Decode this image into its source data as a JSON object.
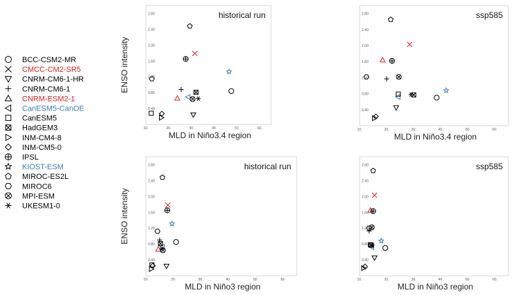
{
  "legend": {
    "items": [
      {
        "label": "BCC-CSM2-MR",
        "marker": "circle",
        "color": "#000000"
      },
      {
        "label": "CMCC-CM2-SR5",
        "marker": "cross-x",
        "color": "#e02020"
      },
      {
        "label": "CNRM-CM6-1-HR",
        "marker": "triangle-down",
        "color": "#000000"
      },
      {
        "label": "CNRM-CM6-1",
        "marker": "plus",
        "color": "#000000"
      },
      {
        "label": "CNRM-ESM2-1",
        "marker": "triangle-up",
        "color": "#e02020"
      },
      {
        "label": "CanESM5-CanOE",
        "marker": "triangle-left",
        "color": "#3e7cb8"
      },
      {
        "label": "CanESM5",
        "marker": "square",
        "color": "#000000"
      },
      {
        "label": "HadGEM3",
        "marker": "square-x",
        "color": "#000000"
      },
      {
        "label": "INM-CM4-8",
        "marker": "triangle-right",
        "color": "#000000"
      },
      {
        "label": "INM-CM5-0",
        "marker": "diamond",
        "color": "#000000"
      },
      {
        "label": "IPSL",
        "marker": "circle-plus",
        "color": "#000000"
      },
      {
        "label": "KIOST-ESM",
        "marker": "star",
        "color": "#3e7cb8"
      },
      {
        "label": "MIROC-ES2L",
        "marker": "pentagon",
        "color": "#000000"
      },
      {
        "label": "MIROC6",
        "marker": "hexagon",
        "color": "#000000"
      },
      {
        "label": "MPI-ESM",
        "marker": "circle-x",
        "color": "#000000"
      },
      {
        "label": "UKESM1-0",
        "marker": "asterisk",
        "color": "#000000"
      }
    ]
  },
  "chart_data": [
    {
      "type": "scatter",
      "title": "historical run",
      "xlabel": "MLD in Niño3.4 region",
      "ylabel": "ENSO intensity",
      "xlim": [
        10,
        65
      ],
      "ylim": [
        0,
        3.0
      ],
      "xticks": [
        "10.",
        "20.",
        "30.",
        "40.",
        "50.",
        "60."
      ],
      "yticks": [
        "",
        "0.40",
        "0.80",
        "1.20",
        "1.60",
        "2.00",
        "2.40",
        "2.80"
      ],
      "points": [
        {
          "model": "BCC-CSM2-MR",
          "x": 47.5,
          "y": 0.84
        },
        {
          "model": "CMCC-CM2-SR5",
          "x": 31.5,
          "y": 1.79
        },
        {
          "model": "CNRM-CM6-1-HR",
          "x": 30.8,
          "y": 0.24
        },
        {
          "model": "CNRM-CM6-1",
          "x": 25.5,
          "y": 0.88
        },
        {
          "model": "CNRM-ESM2-1",
          "x": 23.8,
          "y": 0.66
        },
        {
          "model": "CanESM5-CanOE",
          "x": 28.5,
          "y": 0.69
        },
        {
          "model": "CanESM5",
          "x": 12.3,
          "y": 0.28
        },
        {
          "model": "HadGEM3",
          "x": 32.0,
          "y": 0.81
        },
        {
          "model": "INM-CM4-8",
          "x": 16.8,
          "y": 0.17
        },
        {
          "model": "INM-CM5-0",
          "x": 17.0,
          "y": 0.27
        },
        {
          "model": "IPSL",
          "x": 27.5,
          "y": 1.65
        },
        {
          "model": "KIOST-ESM",
          "x": 46.5,
          "y": 1.33
        },
        {
          "model": "MIROC-ES2L",
          "x": 29.3,
          "y": 2.48
        },
        {
          "model": "MIROC6",
          "x": 12.6,
          "y": 1.15
        },
        {
          "model": "MPI-ESM",
          "x": 30.5,
          "y": 0.64
        },
        {
          "model": "UKESM1-0",
          "x": 33.0,
          "y": 0.65
        }
      ]
    },
    {
      "type": "scatter",
      "title": "ssp585",
      "xlabel": "MLD in Niño3.4 region",
      "ylabel": "",
      "xlim": [
        10,
        65
      ],
      "ylim": [
        0,
        3.0
      ],
      "xticks": [
        "10.",
        "20.",
        "30.",
        "40.",
        "50.",
        "60."
      ],
      "yticks": [
        "",
        "0.40",
        "0.80",
        "1.20",
        "1.60",
        "2.00",
        "2.40",
        "2.80"
      ],
      "points": [
        {
          "model": "BCC-CSM2-MR",
          "x": 38.5,
          "y": 0.7
        },
        {
          "model": "CMCC-CM2-SR5",
          "x": 28.5,
          "y": 2.03
        },
        {
          "model": "CNRM-CM6-1-HR",
          "x": 23.5,
          "y": 0.45
        },
        {
          "model": "CNRM-CM6-1",
          "x": 20.0,
          "y": 1.17
        },
        {
          "model": "CNRM-ESM2-1",
          "x": 18.5,
          "y": 1.64
        },
        {
          "model": "CanESM5-CanOE",
          "x": 24.2,
          "y": 0.72
        },
        {
          "model": "CanESM5",
          "x": 24.3,
          "y": 0.79
        },
        {
          "model": "HadGEM3",
          "x": 30.0,
          "y": 0.77
        },
        {
          "model": "INM-CM4-8",
          "x": 15.5,
          "y": 0.19
        },
        {
          "model": "INM-CM5-0",
          "x": 16.0,
          "y": 0.23
        },
        {
          "model": "IPSL",
          "x": 22.0,
          "y": 1.62
        },
        {
          "model": "KIOST-ESM",
          "x": 42.0,
          "y": 0.88
        },
        {
          "model": "MIROC-ES2L",
          "x": 21.5,
          "y": 2.65
        },
        {
          "model": "MIROC6",
          "x": 12.5,
          "y": 1.22
        },
        {
          "model": "MPI-ESM",
          "x": 24.5,
          "y": 1.22
        },
        {
          "model": "UKESM1-0",
          "x": 29.0,
          "y": 0.78
        }
      ]
    },
    {
      "type": "scatter",
      "title": "historical run",
      "xlabel": "MLD in Niño3 region",
      "ylabel": "ENSO intensity",
      "xlim": [
        10,
        65
      ],
      "ylim": [
        0,
        3.0
      ],
      "xticks": [
        "10.",
        "20.",
        "30.",
        "40.",
        "50.",
        "60."
      ],
      "yticks": [
        "",
        "0.40",
        "0.80",
        "1.20",
        "1.60",
        "2.00",
        "2.40",
        "2.80"
      ],
      "points": [
        {
          "model": "BCC-CSM2-MR",
          "x": 21.0,
          "y": 0.85
        },
        {
          "model": "CMCC-CM2-SR5",
          "x": 18.0,
          "y": 1.78
        },
        {
          "model": "CNRM-CM6-1-HR",
          "x": 17.5,
          "y": 0.24
        },
        {
          "model": "CNRM-CM6-1",
          "x": 15.0,
          "y": 0.9
        },
        {
          "model": "CNRM-ESM2-1",
          "x": 14.5,
          "y": 0.67
        },
        {
          "model": "CanESM5-CanOE",
          "x": 16.0,
          "y": 0.73
        },
        {
          "model": "CanESM5",
          "x": 12.2,
          "y": 0.27
        },
        {
          "model": "HadGEM3",
          "x": 15.3,
          "y": 0.81
        },
        {
          "model": "INM-CM4-8",
          "x": 12.0,
          "y": 0.17
        },
        {
          "model": "INM-CM5-0",
          "x": 12.5,
          "y": 0.25
        },
        {
          "model": "IPSL",
          "x": 17.8,
          "y": 1.65
        },
        {
          "model": "KIOST-ESM",
          "x": 19.5,
          "y": 1.31
        },
        {
          "model": "MIROC-ES2L",
          "x": 16.0,
          "y": 2.48
        },
        {
          "model": "MIROC6",
          "x": 14.2,
          "y": 1.12
        },
        {
          "model": "MPI-ESM",
          "x": 16.2,
          "y": 0.64
        },
        {
          "model": "UKESM1-0",
          "x": 15.8,
          "y": 0.68
        }
      ]
    },
    {
      "type": "scatter",
      "title": "ssp585",
      "xlabel": "MLD in Niño3 region",
      "ylabel": "",
      "xlim": [
        10,
        65
      ],
      "ylim": [
        0,
        3.0
      ],
      "xticks": [
        "10.",
        "20.",
        "30.",
        "40.",
        "50.",
        "60."
      ],
      "yticks": [
        "",
        "0.40",
        "0.80",
        "1.20",
        "1.60",
        "2.00",
        "2.40",
        "2.80"
      ],
      "points": [
        {
          "model": "BCC-CSM2-MR",
          "x": 19.5,
          "y": 0.7
        },
        {
          "model": "CMCC-CM2-SR5",
          "x": 15.5,
          "y": 2.03
        },
        {
          "model": "CNRM-CM6-1-HR",
          "x": 15.5,
          "y": 0.45
        },
        {
          "model": "CNRM-CM6-1",
          "x": 13.5,
          "y": 1.13
        },
        {
          "model": "CNRM-ESM2-1",
          "x": 14.0,
          "y": 1.65
        },
        {
          "model": "CanESM5-CanOE",
          "x": 14.5,
          "y": 0.72
        },
        {
          "model": "CanESM5",
          "x": 14.0,
          "y": 0.78
        },
        {
          "model": "HadGEM3",
          "x": 14.3,
          "y": 0.77
        },
        {
          "model": "INM-CM4-8",
          "x": 11.5,
          "y": 0.19
        },
        {
          "model": "INM-CM5-0",
          "x": 12.0,
          "y": 0.23
        },
        {
          "model": "IPSL",
          "x": 15.0,
          "y": 1.63
        },
        {
          "model": "KIOST-ESM",
          "x": 18.0,
          "y": 0.88
        },
        {
          "model": "MIROC-ES2L",
          "x": 15.0,
          "y": 2.65
        },
        {
          "model": "MIROC6",
          "x": 13.5,
          "y": 1.2
        },
        {
          "model": "MPI-ESM",
          "x": 14.5,
          "y": 1.22
        },
        {
          "model": "UKESM1-0",
          "x": 14.6,
          "y": 0.77
        }
      ]
    }
  ]
}
